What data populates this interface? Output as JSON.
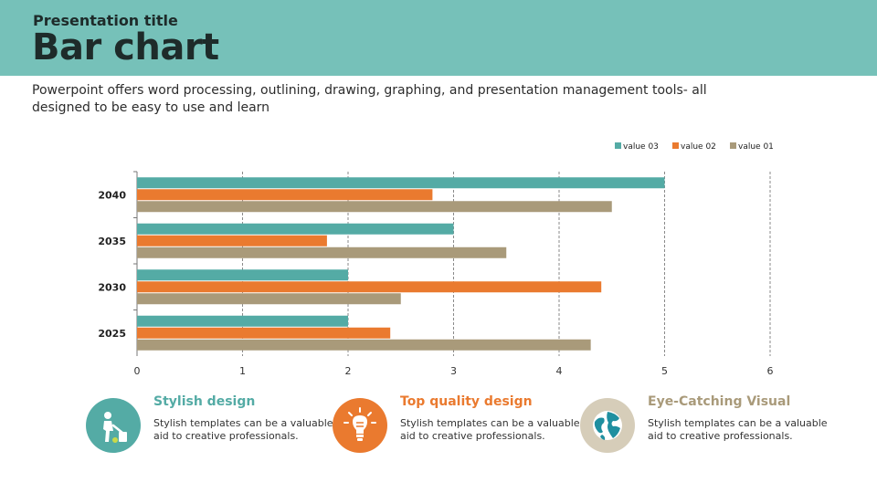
{
  "header": {
    "kicker": "Presentation title",
    "title": "Bar chart"
  },
  "description": "Powerpoint offers  word processing, outlining, drawing, graphing, and presentation management tools- all designed to be easy to use and learn",
  "colors": {
    "header_bg": "#76c1b9",
    "value03": "#54aba5",
    "value02": "#ea7a2f",
    "value01": "#a99a7a"
  },
  "chart_data": {
    "type": "bar",
    "orientation": "horizontal",
    "categories": [
      "2025",
      "2030",
      "2035",
      "2040"
    ],
    "series": [
      {
        "name": "value 01",
        "values": [
          4.3,
          2.5,
          3.5,
          4.5
        ]
      },
      {
        "name": "value 02",
        "values": [
          2.4,
          4.4,
          1.8,
          2.8
        ]
      },
      {
        "name": "value 03",
        "values": [
          2.0,
          2.0,
          3.0,
          5.0
        ]
      }
    ],
    "legend_order": [
      "value 03",
      "value 02",
      "value 01"
    ],
    "xlim": [
      0,
      6
    ],
    "x_ticks": [
      "0",
      "1",
      "2",
      "3",
      "4",
      "5",
      "6"
    ],
    "grid": "vertical-dashed",
    "legend_position": "top-right",
    "title": "",
    "xlabel": "",
    "ylabel": ""
  },
  "features": [
    {
      "title": "Stylish design",
      "body": "Stylish templates can be a valuable  aid to creative professionals.",
      "icon": "recycle-person-icon",
      "color": "#54aba5"
    },
    {
      "title": "Top quality design",
      "body": "Stylish templates can be a valuable  aid to creative professionals.",
      "icon": "lightbulb-icon",
      "color": "#ea7a2f"
    },
    {
      "title": "Eye-Catching Visual",
      "body": "Stylish templates can be a valuable  aid to creative professionals.",
      "icon": "globe-icon",
      "color": "#a99a7a"
    }
  ]
}
